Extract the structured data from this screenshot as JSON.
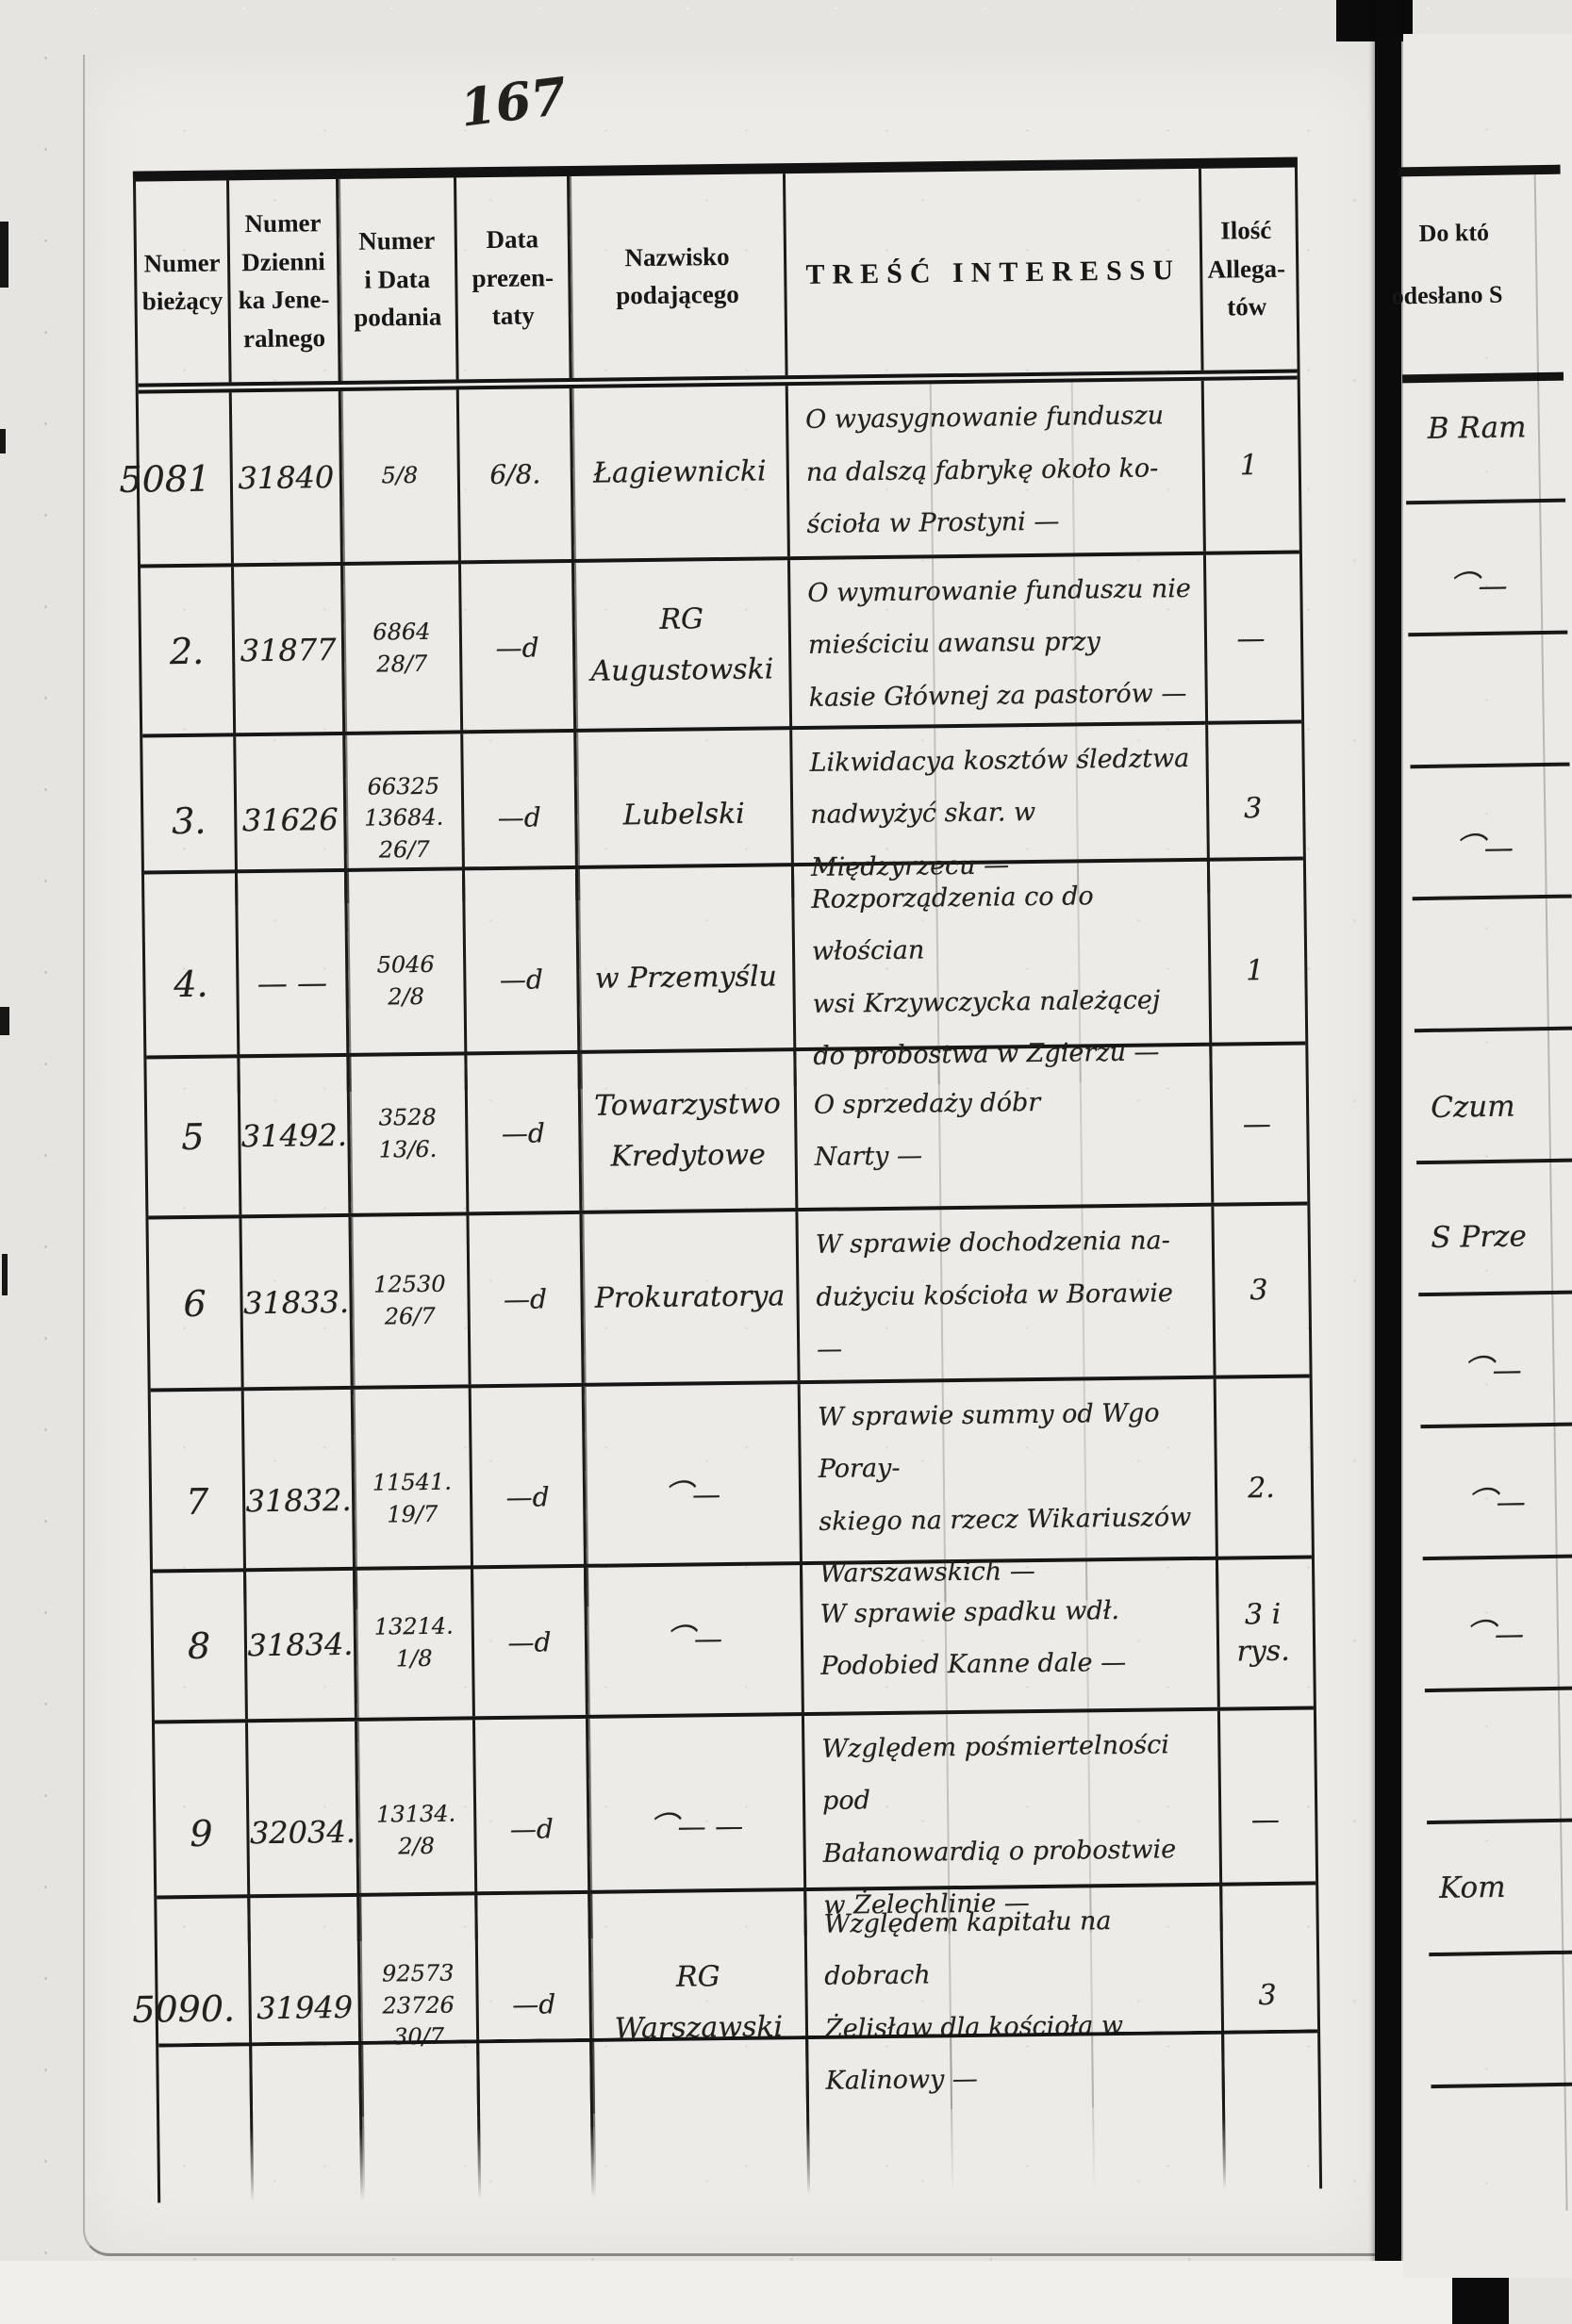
{
  "register": {
    "folio_number": "167",
    "columns": [
      "Numer\nbieżący",
      "Numer\nDzienni\nka Jene-\nralnego",
      "Numer\ni Data\npodania",
      "Data\nprezen-\ntaty",
      "Nazwisko\npodającego",
      "TREŚĆ INTERESSU",
      "Ilość\nAllega-\ntów"
    ],
    "rows": [
      {
        "no": "5081",
        "dziennik": "31840",
        "podanie": "5/8",
        "prezentata": "6/8.",
        "nazwisko": "Łagiewnicki",
        "tresc": "O wyasygnowanie funduszu\nna dalszą fabrykę około ko-\nścioła w Prostyni —",
        "ilosc": "1"
      },
      {
        "no": "2.",
        "dziennik": "31877",
        "podanie": "6864\n28/7",
        "prezentata": "—d",
        "nazwisko": "RG Augustowski",
        "tresc": "O wymurowanie funduszu nie\nmieściciu awansu przy\nkasie Głównej za pastorów —",
        "ilosc": "—"
      },
      {
        "no": "3.",
        "dziennik": "31626",
        "podanie": "66325\n13684.\n26/7",
        "prezentata": "—d",
        "nazwisko": "Lubelski",
        "tresc": "Likwidacya kosztów śledztwa\nnadwyżyć skar. w Międzyrzecu —",
        "ilosc": "3"
      },
      {
        "no": "4.",
        "dziennik": "— —",
        "podanie": "5046\n2/8",
        "prezentata": "—d",
        "nazwisko": "w Przemyślu",
        "tresc": "Rozporządzenia co do włościan\nwsi Krzywczycka należącej\ndo probostwa w Zgierzu —",
        "ilosc": "1"
      },
      {
        "no": "5",
        "dziennik": "31492.",
        "podanie": "3528\n13/6.",
        "prezentata": "—d",
        "nazwisko": "Towarzystwo\nKredytowe",
        "tresc": "O sprzedaży dóbr\nNarty —",
        "ilosc": "—"
      },
      {
        "no": "6",
        "dziennik": "31833.",
        "podanie": "12530\n26/7",
        "prezentata": "—d",
        "nazwisko": "Prokuratorya",
        "tresc": "W sprawie dochodzenia na-\ndużyciu kościoła w Borawie —",
        "ilosc": "3"
      },
      {
        "no": "7",
        "dziennik": "31832.",
        "podanie": "11541.\n19/7",
        "prezentata": "—d",
        "nazwisko": "⌒—",
        "tresc": "W sprawie summy od Wgo Poray-\nskiego na rzecz Wikariuszów\nWarszawskich —",
        "ilosc": "2."
      },
      {
        "no": "8",
        "dziennik": "31834.",
        "podanie": "13214.\n1/8",
        "prezentata": "—d",
        "nazwisko": "⌒—",
        "tresc": "W sprawie spadku wdł.\nPodobied Kanne dale —",
        "ilosc": "3 i\nrys."
      },
      {
        "no": "9",
        "dziennik": "32034.",
        "podanie": "13134.\n2/8",
        "prezentata": "—d",
        "nazwisko": "⌒— —",
        "tresc": "Względem pośmiertelności pod\nBałanowardią o probostwie\nw Żelechlinie —",
        "ilosc": "—"
      },
      {
        "no": "5090.",
        "dziennik": "31949",
        "podanie": "92573\n23726\n30/7",
        "prezentata": "—d",
        "nazwisko": "RG Warszawski",
        "tresc": "Względem kapitału na dobrach\nŻelisław dla kościoła w\nKalinowy —",
        "ilosc": "3"
      }
    ],
    "right_page": {
      "header_line1": "Do któ",
      "header_line2": "odesłano S",
      "fragments": [
        "B Ram",
        "⌒—",
        "⌒—",
        "Czum",
        "S Prze",
        "⌒—",
        "⌒—",
        "⌒—",
        "Kom"
      ]
    }
  }
}
